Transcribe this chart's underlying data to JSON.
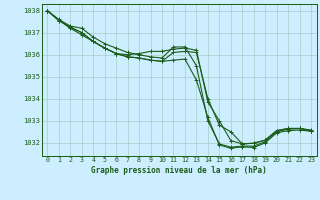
{
  "title": "Graphe pression niveau de la mer (hPa)",
  "bg_color": "#cceeff",
  "grid_color": "#aacccc",
  "line_color": "#1a5c1a",
  "xlim": [
    -0.5,
    23.5
  ],
  "ylim": [
    1031.4,
    1038.3
  ],
  "yticks": [
    1032,
    1033,
    1034,
    1035,
    1036,
    1037,
    1038
  ],
  "xticks": [
    0,
    1,
    2,
    3,
    4,
    5,
    6,
    7,
    8,
    9,
    10,
    11,
    12,
    13,
    14,
    15,
    16,
    17,
    18,
    19,
    20,
    21,
    22,
    23
  ],
  "series": [
    [
      1038.0,
      1037.6,
      1037.3,
      1037.2,
      1036.8,
      1036.5,
      1036.3,
      1036.1,
      1036.0,
      1035.9,
      1035.85,
      1036.35,
      1036.35,
      1035.5,
      1033.0,
      1031.95,
      1031.8,
      1031.85,
      1031.85,
      1032.05,
      1032.5,
      1032.62,
      1032.65,
      1032.58
    ],
    [
      1038.0,
      1037.57,
      1037.2,
      1036.9,
      1036.6,
      1036.3,
      1036.05,
      1035.9,
      1035.85,
      1035.75,
      1035.7,
      1035.75,
      1035.8,
      1034.85,
      1033.15,
      1031.9,
      1031.75,
      1031.82,
      1031.78,
      1032.0,
      1032.45,
      1032.55,
      1032.58,
      1032.52
    ],
    [
      1038.0,
      1037.55,
      1037.25,
      1037.0,
      1036.6,
      1036.3,
      1036.05,
      1035.9,
      1035.85,
      1035.75,
      1035.7,
      1036.1,
      1036.15,
      1036.1,
      1034.0,
      1032.8,
      1032.5,
      1031.95,
      1031.98,
      1032.12,
      1032.55,
      1032.65,
      1032.65,
      1032.55
    ],
    [
      1038.0,
      1037.55,
      1037.25,
      1037.0,
      1036.6,
      1036.3,
      1036.05,
      1036.0,
      1036.05,
      1036.15,
      1036.15,
      1036.25,
      1036.3,
      1036.2,
      1033.85,
      1033.0,
      1032.1,
      1031.95,
      1031.98,
      1032.12,
      1032.55,
      1032.65,
      1032.65,
      1032.55
    ]
  ]
}
